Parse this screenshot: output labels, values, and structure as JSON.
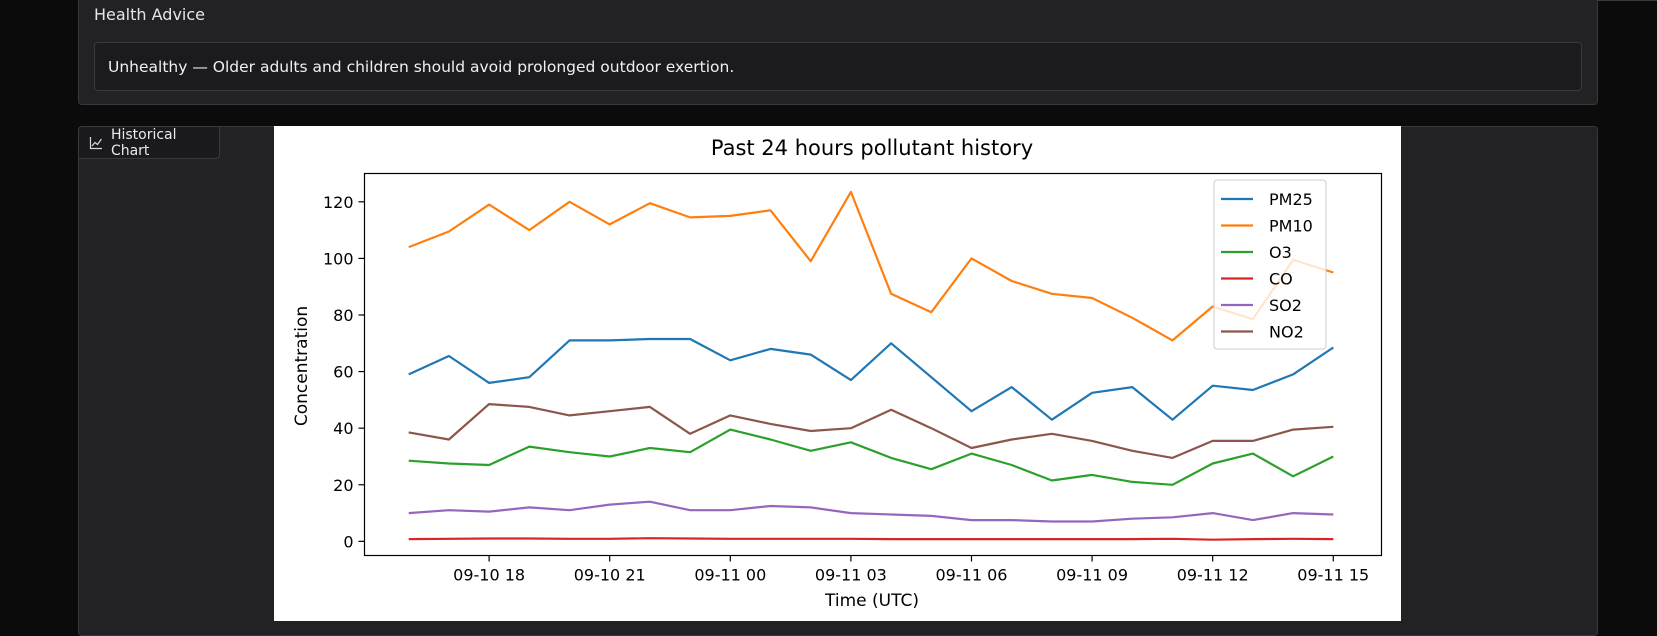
{
  "advice": {
    "label": "Health Advice",
    "text": "Unhealthy — Older adults and children should avoid prolonged outdoor exertion."
  },
  "chart_tab": {
    "label": "Historical Chart",
    "icon": "line-chart-icon"
  },
  "chart_data": {
    "type": "line",
    "title": "Past 24 hours pollutant history",
    "xlabel": "Time (UTC)",
    "ylabel": "Concentration",
    "x": [
      "09-10 16:00",
      "09-10 17:00",
      "09-10 18:00",
      "09-10 19:00",
      "09-10 20:00",
      "09-10 21:00",
      "09-10 22:00",
      "09-10 23:00",
      "09-11 00:00",
      "09-11 01:00",
      "09-11 02:00",
      "09-11 03:00",
      "09-11 04:00",
      "09-11 05:00",
      "09-11 06:00",
      "09-11 07:00",
      "09-11 08:00",
      "09-11 09:00",
      "09-11 10:00",
      "09-11 11:00",
      "09-11 12:00",
      "09-11 13:00",
      "09-11 14:00",
      "09-11 15:00"
    ],
    "xticks": [
      {
        "x": 2,
        "label": "09-10 18"
      },
      {
        "x": 5,
        "label": "09-10 21"
      },
      {
        "x": 8,
        "label": "09-11 00"
      },
      {
        "x": 11,
        "label": "09-11 03"
      },
      {
        "x": 14,
        "label": "09-11 06"
      },
      {
        "x": 17,
        "label": "09-11 09"
      },
      {
        "x": 20,
        "label": "09-11 12"
      },
      {
        "x": 23,
        "label": "09-11 15"
      }
    ],
    "ylim": [
      -5,
      130
    ],
    "yticks": [
      0,
      20,
      40,
      60,
      80,
      100,
      120
    ],
    "xlim": [
      -1.1,
      24.2
    ],
    "grid": false,
    "legend_position": "top-right",
    "series": [
      {
        "name": "PM25",
        "color": "#1f77b4",
        "values": [
          59,
          65.5,
          56,
          58,
          71,
          71,
          71.5,
          71.5,
          64,
          68,
          66,
          57,
          70,
          58,
          46,
          54.5,
          43,
          52.5,
          54.5,
          43,
          55,
          53.5,
          59,
          68.5
        ]
      },
      {
        "name": "PM10",
        "color": "#ff7f0e",
        "values": [
          104,
          109.5,
          119,
          110,
          120,
          112,
          119.5,
          114.5,
          115,
          117,
          99,
          123.5,
          87.5,
          81,
          100,
          92,
          87.5,
          86,
          79,
          71,
          83,
          78.5,
          99.5,
          95
        ]
      },
      {
        "name": "O3",
        "color": "#2ca02c",
        "values": [
          28.5,
          27.5,
          27,
          33.5,
          31.5,
          30,
          33,
          31.5,
          39.5,
          36,
          32,
          35,
          29.5,
          25.5,
          31,
          27,
          21.5,
          23.5,
          21,
          20,
          27.5,
          31,
          23,
          30
        ]
      },
      {
        "name": "CO",
        "color": "#d62728",
        "values": [
          0.8,
          0.9,
          1,
          1,
          0.9,
          0.9,
          1.1,
          1,
          0.9,
          0.9,
          0.9,
          0.9,
          0.8,
          0.8,
          0.8,
          0.8,
          0.8,
          0.8,
          0.8,
          0.9,
          0.6,
          0.8,
          0.9,
          0.8
        ]
      },
      {
        "name": "SO2",
        "color": "#9467bd",
        "values": [
          10,
          11,
          10.5,
          12,
          11,
          13,
          14,
          11,
          11,
          12.5,
          12,
          10,
          9.5,
          9,
          7.5,
          7.5,
          7,
          7,
          8,
          8.5,
          10,
          7.5,
          10,
          9.5
        ]
      },
      {
        "name": "NO2",
        "color": "#8c564b",
        "values": [
          38.5,
          36,
          48.5,
          47.5,
          44.5,
          46,
          47.5,
          38,
          44.5,
          41.5,
          39,
          40,
          46.5,
          40,
          33,
          36,
          38,
          35.5,
          32,
          29.5,
          35.5,
          35.5,
          39.5,
          40.5
        ]
      }
    ]
  }
}
